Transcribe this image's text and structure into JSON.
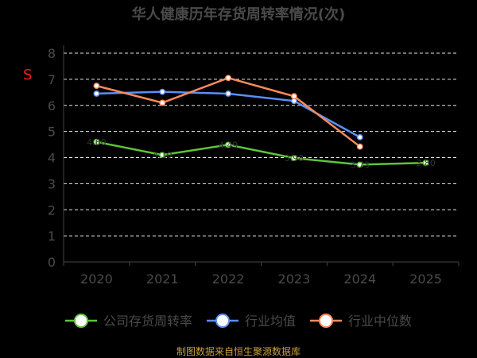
{
  "page": {
    "title": "华人健康历年存货周转率情况(次)",
    "source": "制图数据来自恒生聚源数据库",
    "watermark": "S"
  },
  "chart_data": {
    "type": "line",
    "title": "华人健康历年存货周转率情况(次)",
    "xlabel": "",
    "ylabel": "",
    "categories": [
      "2020",
      "2021",
      "2022",
      "2023",
      "2024",
      "2025"
    ],
    "ylim": [
      0,
      8
    ],
    "yticks": [
      0,
      1,
      2,
      3,
      4,
      5,
      6,
      7,
      8
    ],
    "grid": true,
    "legend_position": "bottom",
    "series": [
      {
        "name": "公司存货周转率",
        "color": "#5fc33a",
        "values": [
          4.6,
          4.1,
          4.49,
          3.98,
          3.73,
          3.8
        ],
        "labels": [
          "4.60",
          "4.10",
          "4.49",
          "3.98",
          "3.73",
          "3.80"
        ]
      },
      {
        "name": "行业均值",
        "color": "#5b8ff9",
        "values": [
          6.45,
          6.52,
          6.45,
          6.17,
          4.78,
          null
        ],
        "labels": []
      },
      {
        "name": "行业中位数",
        "color": "#ff8a5b",
        "values": [
          6.75,
          6.1,
          7.05,
          6.35,
          4.42,
          null
        ],
        "labels": []
      }
    ]
  }
}
